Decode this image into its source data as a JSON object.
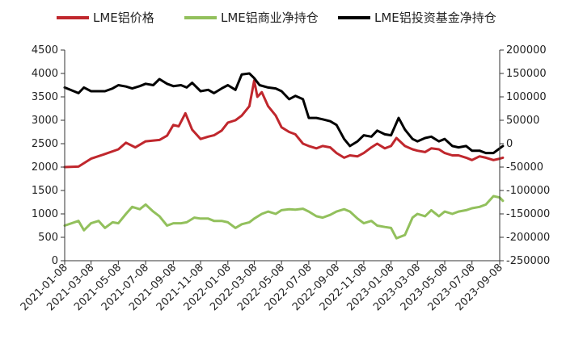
{
  "chart_data": {
    "type": "line",
    "legend_position": "top",
    "grid": false,
    "x_ticks": [
      "2021-01-08",
      "2021-03-08",
      "2021-05-08",
      "2021-07-08",
      "2021-09-08",
      "2021-11-08",
      "2022-01-08",
      "2022-03-08",
      "2022-05-08",
      "2022-07-08",
      "2022-09-08",
      "2022-11-08",
      "2023-01-08",
      "2023-03-08",
      "2023-05-08",
      "2023-07-08",
      "2023-09-08"
    ],
    "y_left": {
      "min": 0,
      "max": 4500,
      "ticks": [
        "0",
        "500",
        "1000",
        "1500",
        "2000",
        "2500",
        "3000",
        "3500",
        "4000",
        "4500"
      ]
    },
    "y_right": {
      "min": -250000,
      "max": 200000,
      "ticks": [
        "-250000",
        "-200000",
        "-150000",
        "-100000",
        "-50000",
        "0",
        "50000",
        "100000",
        "150000",
        "200000"
      ]
    },
    "series": [
      {
        "name": "LME铝价格",
        "color": "#C0272D",
        "axis": "left",
        "points": [
          [
            "2021-01-08",
            2000
          ],
          [
            "2021-02-08",
            2010
          ],
          [
            "2021-03-08",
            2180
          ],
          [
            "2021-04-08",
            2280
          ],
          [
            "2021-05-08",
            2380
          ],
          [
            "2021-05-25",
            2520
          ],
          [
            "2021-06-15",
            2420
          ],
          [
            "2021-07-08",
            2550
          ],
          [
            "2021-08-08",
            2580
          ],
          [
            "2021-08-25",
            2670
          ],
          [
            "2021-09-08",
            2900
          ],
          [
            "2021-09-20",
            2870
          ],
          [
            "2021-10-05",
            3150
          ],
          [
            "2021-10-20",
            2800
          ],
          [
            "2021-11-08",
            2600
          ],
          [
            "2021-11-25",
            2650
          ],
          [
            "2021-12-08",
            2680
          ],
          [
            "2021-12-25",
            2780
          ],
          [
            "2022-01-08",
            2950
          ],
          [
            "2022-01-25",
            3000
          ],
          [
            "2022-02-08",
            3100
          ],
          [
            "2022-02-25",
            3300
          ],
          [
            "2022-03-08",
            3850
          ],
          [
            "2022-03-15",
            3500
          ],
          [
            "2022-03-25",
            3600
          ],
          [
            "2022-04-08",
            3300
          ],
          [
            "2022-04-25",
            3100
          ],
          [
            "2022-05-08",
            2850
          ],
          [
            "2022-05-25",
            2750
          ],
          [
            "2022-06-08",
            2700
          ],
          [
            "2022-06-25",
            2500
          ],
          [
            "2022-07-08",
            2450
          ],
          [
            "2022-07-25",
            2400
          ],
          [
            "2022-08-08",
            2450
          ],
          [
            "2022-08-25",
            2420
          ],
          [
            "2022-09-08",
            2300
          ],
          [
            "2022-09-25",
            2200
          ],
          [
            "2022-10-08",
            2250
          ],
          [
            "2022-10-25",
            2230
          ],
          [
            "2022-11-08",
            2300
          ],
          [
            "2022-11-25",
            2420
          ],
          [
            "2022-12-08",
            2500
          ],
          [
            "2022-12-25",
            2400
          ],
          [
            "2023-01-08",
            2450
          ],
          [
            "2023-01-20",
            2620
          ],
          [
            "2023-02-08",
            2450
          ],
          [
            "2023-02-25",
            2380
          ],
          [
            "2023-03-08",
            2350
          ],
          [
            "2023-03-25",
            2320
          ],
          [
            "2023-04-08",
            2400
          ],
          [
            "2023-04-25",
            2380
          ],
          [
            "2023-05-08",
            2300
          ],
          [
            "2023-05-25",
            2250
          ],
          [
            "2023-06-08",
            2250
          ],
          [
            "2023-06-25",
            2200
          ],
          [
            "2023-07-08",
            2150
          ],
          [
            "2023-07-25",
            2230
          ],
          [
            "2023-08-08",
            2200
          ],
          [
            "2023-08-25",
            2150
          ],
          [
            "2023-09-08",
            2180
          ],
          [
            "2023-09-15",
            2200
          ]
        ]
      },
      {
        "name": "LME铝商业净持仓",
        "color": "#92C05C",
        "axis": "left",
        "points": [
          [
            "2021-01-08",
            750
          ],
          [
            "2021-02-08",
            850
          ],
          [
            "2021-02-20",
            650
          ],
          [
            "2021-03-08",
            800
          ],
          [
            "2021-03-25",
            850
          ],
          [
            "2021-04-08",
            700
          ],
          [
            "2021-04-25",
            820
          ],
          [
            "2021-05-08",
            800
          ],
          [
            "2021-05-25",
            1000
          ],
          [
            "2021-06-08",
            1150
          ],
          [
            "2021-06-25",
            1100
          ],
          [
            "2021-07-08",
            1200
          ],
          [
            "2021-07-25",
            1050
          ],
          [
            "2021-08-08",
            950
          ],
          [
            "2021-08-25",
            750
          ],
          [
            "2021-09-08",
            800
          ],
          [
            "2021-09-25",
            800
          ],
          [
            "2021-10-08",
            820
          ],
          [
            "2021-10-25",
            920
          ],
          [
            "2021-11-08",
            900
          ],
          [
            "2021-11-25",
            900
          ],
          [
            "2021-12-08",
            850
          ],
          [
            "2021-12-25",
            850
          ],
          [
            "2022-01-08",
            820
          ],
          [
            "2022-01-25",
            700
          ],
          [
            "2022-02-08",
            780
          ],
          [
            "2022-02-25",
            820
          ],
          [
            "2022-03-08",
            900
          ],
          [
            "2022-03-25",
            1000
          ],
          [
            "2022-04-08",
            1050
          ],
          [
            "2022-04-25",
            1000
          ],
          [
            "2022-05-08",
            1080
          ],
          [
            "2022-05-25",
            1100
          ],
          [
            "2022-06-08",
            1090
          ],
          [
            "2022-06-25",
            1110
          ],
          [
            "2022-07-08",
            1050
          ],
          [
            "2022-07-25",
            950
          ],
          [
            "2022-08-08",
            920
          ],
          [
            "2022-08-25",
            980
          ],
          [
            "2022-09-08",
            1050
          ],
          [
            "2022-09-25",
            1100
          ],
          [
            "2022-10-08",
            1050
          ],
          [
            "2022-10-25",
            900
          ],
          [
            "2022-11-08",
            800
          ],
          [
            "2022-11-25",
            850
          ],
          [
            "2022-12-08",
            750
          ],
          [
            "2022-12-25",
            720
          ],
          [
            "2023-01-08",
            700
          ],
          [
            "2023-01-20",
            480
          ],
          [
            "2023-02-08",
            550
          ],
          [
            "2023-02-25",
            920
          ],
          [
            "2023-03-08",
            1000
          ],
          [
            "2023-03-25",
            950
          ],
          [
            "2023-04-08",
            1080
          ],
          [
            "2023-04-25",
            950
          ],
          [
            "2023-05-08",
            1050
          ],
          [
            "2023-05-25",
            1000
          ],
          [
            "2023-06-08",
            1050
          ],
          [
            "2023-06-25",
            1080
          ],
          [
            "2023-07-08",
            1120
          ],
          [
            "2023-07-25",
            1150
          ],
          [
            "2023-08-08",
            1200
          ],
          [
            "2023-08-25",
            1380
          ],
          [
            "2023-09-08",
            1350
          ],
          [
            "2023-09-15",
            1280
          ]
        ]
      },
      {
        "name": "LME铝投资基金净持仓",
        "color": "#000000",
        "axis": "right",
        "points": [
          [
            "2021-01-08",
            120000
          ],
          [
            "2021-02-08",
            108000
          ],
          [
            "2021-02-20",
            120000
          ],
          [
            "2021-03-08",
            112000
          ],
          [
            "2021-04-08",
            112000
          ],
          [
            "2021-04-25",
            118000
          ],
          [
            "2021-05-08",
            125000
          ],
          [
            "2021-05-25",
            122000
          ],
          [
            "2021-06-08",
            118000
          ],
          [
            "2021-06-25",
            123000
          ],
          [
            "2021-07-08",
            128000
          ],
          [
            "2021-07-25",
            125000
          ],
          [
            "2021-08-08",
            138000
          ],
          [
            "2021-08-25",
            128000
          ],
          [
            "2021-09-08",
            123000
          ],
          [
            "2021-09-25",
            125000
          ],
          [
            "2021-10-08",
            120000
          ],
          [
            "2021-10-20",
            130000
          ],
          [
            "2021-11-08",
            112000
          ],
          [
            "2021-11-25",
            115000
          ],
          [
            "2021-12-08",
            108000
          ],
          [
            "2021-12-25",
            118000
          ],
          [
            "2022-01-08",
            125000
          ],
          [
            "2022-01-25",
            115000
          ],
          [
            "2022-02-08",
            148000
          ],
          [
            "2022-02-25",
            150000
          ],
          [
            "2022-03-08",
            140000
          ],
          [
            "2022-03-20",
            125000
          ],
          [
            "2022-04-08",
            120000
          ],
          [
            "2022-04-25",
            118000
          ],
          [
            "2022-05-08",
            112000
          ],
          [
            "2022-05-25",
            95000
          ],
          [
            "2022-06-08",
            102000
          ],
          [
            "2022-06-25",
            95000
          ],
          [
            "2022-07-08",
            55000
          ],
          [
            "2022-07-25",
            55000
          ],
          [
            "2022-08-08",
            52000
          ],
          [
            "2022-08-25",
            48000
          ],
          [
            "2022-09-08",
            40000
          ],
          [
            "2022-09-25",
            10000
          ],
          [
            "2022-10-08",
            -5000
          ],
          [
            "2022-10-25",
            5000
          ],
          [
            "2022-11-08",
            18000
          ],
          [
            "2022-11-25",
            15000
          ],
          [
            "2022-12-08",
            28000
          ],
          [
            "2022-12-25",
            20000
          ],
          [
            "2023-01-08",
            18000
          ],
          [
            "2023-01-25",
            55000
          ],
          [
            "2023-02-08",
            30000
          ],
          [
            "2023-02-25",
            10000
          ],
          [
            "2023-03-08",
            5000
          ],
          [
            "2023-03-25",
            12000
          ],
          [
            "2023-04-08",
            15000
          ],
          [
            "2023-04-25",
            5000
          ],
          [
            "2023-05-08",
            10000
          ],
          [
            "2023-05-25",
            -5000
          ],
          [
            "2023-06-08",
            -8000
          ],
          [
            "2023-06-25",
            -5000
          ],
          [
            "2023-07-08",
            -15000
          ],
          [
            "2023-07-25",
            -15000
          ],
          [
            "2023-08-08",
            -20000
          ],
          [
            "2023-08-25",
            -20000
          ],
          [
            "2023-09-08",
            -10000
          ],
          [
            "2023-09-15",
            -5000
          ]
        ]
      }
    ]
  }
}
